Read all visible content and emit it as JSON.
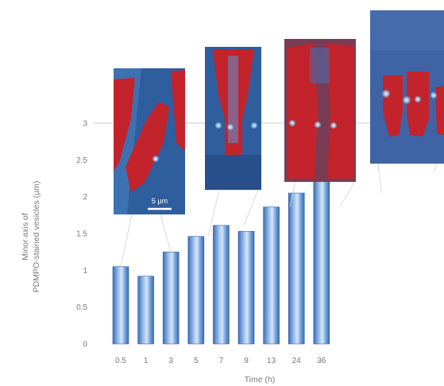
{
  "chart_data": {
    "type": "bar",
    "categories": [
      "0.5",
      "1",
      "3",
      "5",
      "7",
      "9",
      "13",
      "24",
      "36"
    ],
    "values": [
      1.05,
      0.92,
      1.25,
      1.46,
      1.61,
      1.53,
      1.86,
      2.05,
      2.33
    ],
    "xlabel": "Time (h)",
    "ylabel_lines": [
      "Minor axis of",
      "PDMPO-stained vesicles (µm)"
    ],
    "yticks": [
      "0",
      "0.5",
      "1",
      "1.5",
      "2",
      "2.5",
      "3"
    ],
    "ylim": [
      0,
      3.3
    ],
    "grid": false,
    "bar_color": "#5b8fd0"
  },
  "insets": {
    "scale_bar_label": "5 µm",
    "colors": {
      "background_blue": "#2f5e9e",
      "cell_red": "#c3232b",
      "vesicle": "#b8e2ff"
    }
  }
}
